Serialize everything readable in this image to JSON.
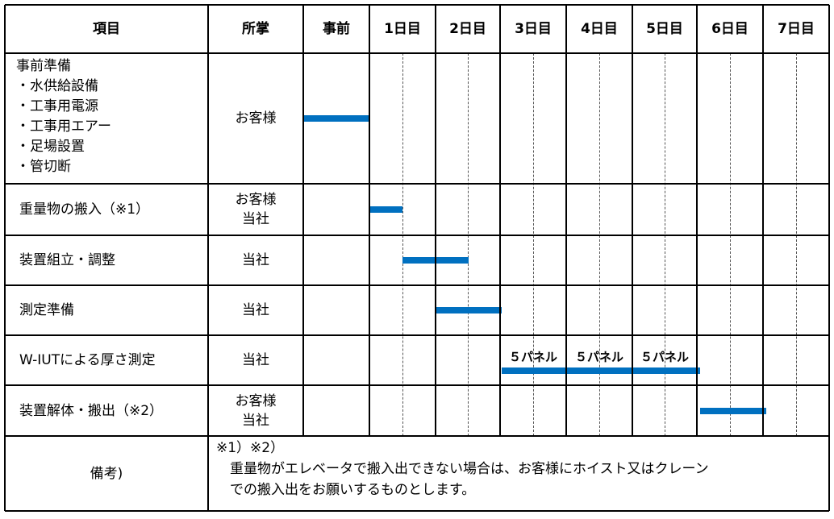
{
  "headers": {
    "item": "項目",
    "owner": "所掌",
    "days": [
      "事前",
      "1日目",
      "2日目",
      "3日目",
      "4日目",
      "5日目",
      "6日目",
      "7日目"
    ]
  },
  "rows": [
    {
      "item_lines": [
        "事前準備",
        "・水供給設備",
        "・工事用電源",
        "・工事用エアー",
        "・足場設置",
        "・管切断"
      ],
      "owner_lines": [
        "お客様"
      ],
      "bars": [
        {
          "start_day": 0,
          "end_day": 1
        }
      ]
    },
    {
      "item_lines": [
        "重量物の搬入（※1）"
      ],
      "owner_lines": [
        "お客様",
        "当社"
      ],
      "bars": [
        {
          "start_day": 1,
          "end_day": 1.5
        }
      ]
    },
    {
      "item_lines": [
        "装置組立・調整"
      ],
      "owner_lines": [
        "当社"
      ],
      "bars": [
        {
          "start_day": 1.5,
          "end_day": 2.5
        }
      ]
    },
    {
      "item_lines": [
        "測定準備"
      ],
      "owner_lines": [
        "当社"
      ],
      "bars": [
        {
          "start_day": 2,
          "end_day": 3
        }
      ]
    },
    {
      "item_lines": [
        "W-IUTによる厚さ測定"
      ],
      "owner_lines": [
        "当社"
      ],
      "bars": [
        {
          "start_day": 3,
          "end_day": 6
        }
      ],
      "bar_labels": [
        "５パネル",
        "５パネル",
        "５パネル"
      ]
    },
    {
      "item_lines": [
        "装置解体・搬出（※2）"
      ],
      "owner_lines": [
        "お客様",
        "当社"
      ],
      "bars": [
        {
          "start_day": 6,
          "end_day": 7
        }
      ]
    }
  ],
  "remarks": {
    "label": "備考)",
    "lines": [
      "※1）※2）",
      "　重量物がエレベータで搬入出できない場合は、お客様にホイスト又はクレーン",
      "　での搬入出をお願いするものとします。"
    ]
  },
  "colors": {
    "bar": "#0070c0",
    "grid": "#000000"
  }
}
